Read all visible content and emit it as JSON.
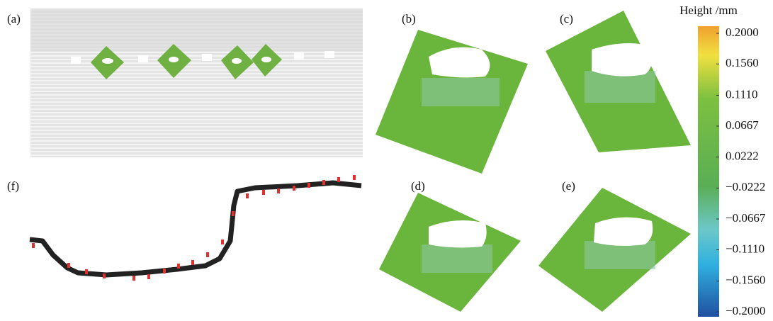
{
  "panels": {
    "a": "(a)",
    "b": "(b)",
    "c": "(c)",
    "d": "(d)",
    "e": "(e)",
    "f": "(f)"
  },
  "colorbar": {
    "title": "Height /mm",
    "lim": [
      -0.2,
      0.2
    ],
    "ticks": [
      {
        "value": 0.2,
        "label": "0.2000"
      },
      {
        "value": 0.156,
        "label": "0.1560"
      },
      {
        "value": 0.111,
        "label": "0.1110"
      },
      {
        "value": 0.0667,
        "label": "0.0667"
      },
      {
        "value": 0.0222,
        "label": "0.0222"
      },
      {
        "value": -0.0222,
        "label": "−0.0222"
      },
      {
        "value": -0.0667,
        "label": "−0.0667"
      },
      {
        "value": -0.111,
        "label": "−0.1110"
      },
      {
        "value": -0.156,
        "label": "−0.1560"
      },
      {
        "value": -0.2,
        "label": "−0.2000"
      }
    ]
  }
}
